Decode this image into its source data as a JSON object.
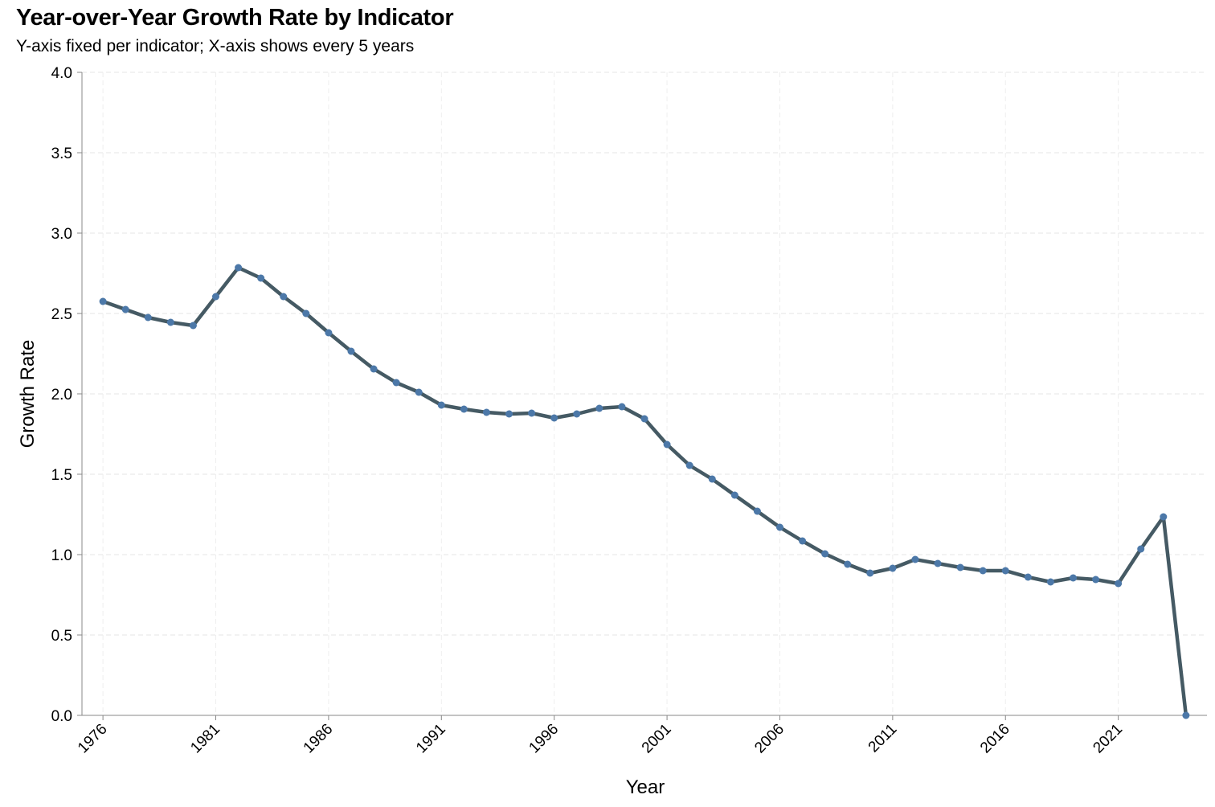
{
  "chart_data": {
    "type": "line",
    "title": "Year-over-Year Growth Rate by Indicator",
    "subtitle": "Y-axis fixed per indicator; X-axis shows every 5 years",
    "xlabel": "Year",
    "ylabel": "Growth Rate",
    "ylim": [
      0,
      4
    ],
    "xlim": [
      1975,
      2025
    ],
    "x_ticks": [
      1976,
      1981,
      1986,
      1991,
      1996,
      2001,
      2006,
      2011,
      2016,
      2021
    ],
    "y_ticks": [
      "0.0",
      "0.5",
      "1.0",
      "1.5",
      "2.0",
      "2.5",
      "3.0",
      "3.5",
      "4.0"
    ],
    "grid": true,
    "line_color": "#455a64",
    "point_color": "#4c78a8",
    "x": [
      1976,
      1977,
      1978,
      1979,
      1980,
      1981,
      1982,
      1983,
      1984,
      1985,
      1986,
      1987,
      1988,
      1989,
      1990,
      1991,
      1992,
      1993,
      1994,
      1995,
      1996,
      1997,
      1998,
      1999,
      2000,
      2001,
      2002,
      2003,
      2004,
      2005,
      2006,
      2007,
      2008,
      2009,
      2010,
      2011,
      2012,
      2013,
      2014,
      2015,
      2016,
      2017,
      2018,
      2019,
      2020,
      2021,
      2022,
      2023,
      2024
    ],
    "values": [
      2.575,
      2.525,
      2.475,
      2.445,
      2.425,
      2.605,
      2.785,
      2.72,
      2.605,
      2.5,
      2.38,
      2.265,
      2.155,
      2.07,
      2.01,
      1.93,
      1.905,
      1.885,
      1.875,
      1.88,
      1.85,
      1.875,
      1.91,
      1.92,
      1.845,
      1.685,
      1.555,
      1.47,
      1.37,
      1.27,
      1.17,
      1.085,
      1.005,
      0.94,
      0.885,
      0.915,
      0.97,
      0.945,
      0.92,
      0.9,
      0.9,
      0.86,
      0.83,
      0.855,
      0.845,
      0.82,
      1.035,
      1.235,
      0.0
    ]
  }
}
